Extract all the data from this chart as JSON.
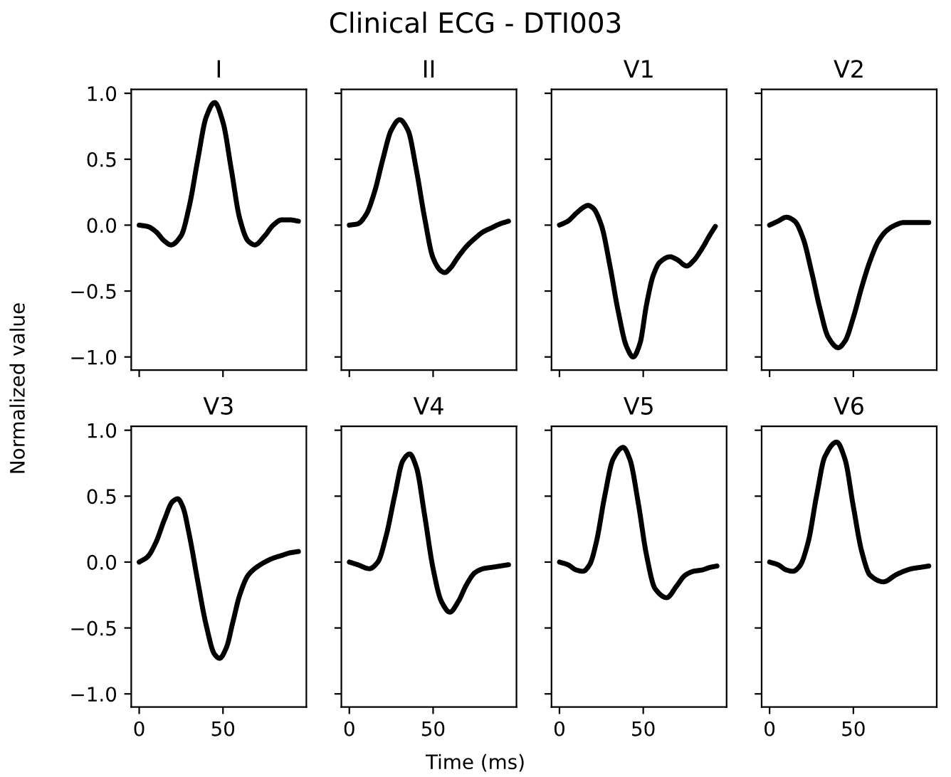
{
  "chart_data": [
    {
      "type": "other",
      "title": "Clinical ECG - DTI003",
      "xlabel": "Time (ms)",
      "ylabel": "Normalized value"
    },
    {
      "type": "line",
      "title": "I",
      "color": "#000000",
      "tick_labels": "y",
      "xlim": [
        -4.75,
        99.75
      ],
      "ylim": [
        -1.1,
        1.03
      ],
      "xticks": [
        0,
        50
      ],
      "yticks": [
        {
          "value": -1,
          "label": "−1.0"
        },
        {
          "value": -0.5,
          "label": "−0.5"
        },
        {
          "value": 0,
          "label": "0.0"
        },
        {
          "value": 0.5,
          "label": "0.5"
        },
        {
          "value": 1,
          "label": "1.0"
        }
      ],
      "x": [
        0,
        5,
        10,
        15,
        19,
        25,
        30,
        35,
        40,
        45,
        50,
        55,
        60,
        65,
        69,
        75,
        80,
        85,
        90,
        95
      ],
      "values": [
        0,
        -0.01,
        -0.05,
        -0.12,
        -0.15,
        -0.08,
        0.15,
        0.5,
        0.82,
        0.93,
        0.78,
        0.42,
        0.05,
        -0.12,
        -0.15,
        -0.08,
        0.0,
        0.04,
        0.04,
        0.03
      ]
    },
    {
      "type": "line",
      "title": "II",
      "color": "#000000",
      "tick_labels": false,
      "xlim": [
        -4.75,
        99.75
      ],
      "ylim": [
        -1.1,
        1.03
      ],
      "xticks": [
        0,
        50
      ],
      "yticks": [
        -1,
        -0.5,
        0,
        0.5,
        1
      ],
      "x": [
        0,
        5,
        10,
        15,
        20,
        25,
        30,
        35,
        40,
        45,
        50,
        55,
        57,
        60,
        65,
        70,
        75,
        80,
        85,
        90,
        95
      ],
      "values": [
        0,
        0.01,
        0.08,
        0.25,
        0.5,
        0.72,
        0.8,
        0.72,
        0.42,
        0.05,
        -0.25,
        -0.35,
        -0.36,
        -0.33,
        -0.24,
        -0.16,
        -0.1,
        -0.05,
        -0.02,
        0.01,
        0.03
      ]
    },
    {
      "type": "line",
      "title": "V1",
      "color": "#000000",
      "tick_labels": false,
      "xlim": [
        -4.75,
        99.75
      ],
      "ylim": [
        -1.1,
        1.03
      ],
      "xticks": [
        0,
        50
      ],
      "yticks": [
        -1,
        -0.5,
        0,
        0.5,
        1
      ],
      "x": [
        0,
        5,
        10,
        15,
        17,
        20,
        25,
        30,
        35,
        40,
        44,
        48,
        52,
        56,
        60,
        66,
        70,
        76,
        80,
        85,
        90,
        93
      ],
      "values": [
        0,
        0.03,
        0.09,
        0.14,
        0.15,
        0.13,
        0.0,
        -0.3,
        -0.65,
        -0.92,
        -1.0,
        -0.9,
        -0.6,
        -0.38,
        -0.28,
        -0.24,
        -0.26,
        -0.31,
        -0.27,
        -0.18,
        -0.07,
        -0.01
      ]
    },
    {
      "type": "line",
      "title": "V2",
      "color": "#000000",
      "tick_labels": false,
      "xlim": [
        -4.75,
        99.75
      ],
      "ylim": [
        -1.1,
        1.03
      ],
      "xticks": [
        0,
        50
      ],
      "yticks": [
        -1,
        -0.5,
        0,
        0.5,
        1
      ],
      "x": [
        0,
        5,
        10,
        15,
        20,
        25,
        30,
        35,
        41,
        45,
        50,
        55,
        60,
        65,
        70,
        75,
        80,
        85,
        90,
        95
      ],
      "values": [
        0,
        0.03,
        0.06,
        0.03,
        -0.1,
        -0.35,
        -0.63,
        -0.85,
        -0.93,
        -0.88,
        -0.7,
        -0.47,
        -0.27,
        -0.12,
        -0.04,
        0.0,
        0.02,
        0.02,
        0.02,
        0.02
      ]
    },
    {
      "type": "line",
      "title": "V3",
      "color": "#000000",
      "xlim": [
        -4.75,
        99.75
      ],
      "ylim": [
        -1.1,
        1.03
      ],
      "xticks": [
        0,
        50
      ],
      "yticks": [
        {
          "value": -1,
          "label": "−1.0"
        },
        {
          "value": -0.5,
          "label": "−0.5"
        },
        {
          "value": 0,
          "label": "0.0"
        },
        {
          "value": 0.5,
          "label": "0.5"
        },
        {
          "value": 1,
          "label": "1.0"
        }
      ],
      "x": [
        0,
        5,
        10,
        15,
        20,
        23,
        26,
        30,
        35,
        40,
        45,
        48,
        52,
        56,
        60,
        65,
        70,
        75,
        80,
        85,
        90,
        95
      ],
      "values": [
        0,
        0.04,
        0.15,
        0.32,
        0.46,
        0.48,
        0.42,
        0.2,
        -0.15,
        -0.48,
        -0.7,
        -0.73,
        -0.65,
        -0.45,
        -0.25,
        -0.1,
        -0.04,
        0.0,
        0.03,
        0.05,
        0.07,
        0.08
      ]
    },
    {
      "type": "line",
      "title": "V4",
      "color": "#000000",
      "tick_labels": "x",
      "xlim": [
        -4.75,
        99.75
      ],
      "ylim": [
        -1.1,
        1.03
      ],
      "xticks": [
        0,
        50
      ],
      "yticks": [
        -1,
        -0.5,
        0,
        0.5,
        1
      ],
      "x": [
        0,
        5,
        12,
        17,
        22,
        27,
        32,
        36,
        40,
        45,
        50,
        55,
        60,
        65,
        70,
        75,
        80,
        85,
        90,
        95
      ],
      "values": [
        0,
        -0.02,
        -0.05,
        0.0,
        0.2,
        0.5,
        0.77,
        0.82,
        0.72,
        0.35,
        -0.05,
        -0.3,
        -0.38,
        -0.3,
        -0.17,
        -0.08,
        -0.05,
        -0.04,
        -0.03,
        -0.02
      ]
    },
    {
      "type": "line",
      "title": "V5",
      "color": "#000000",
      "tick_labels": "x",
      "xlim": [
        -4.75,
        99.75
      ],
      "ylim": [
        -1.1,
        1.03
      ],
      "xticks": [
        0,
        50
      ],
      "yticks": [
        -1,
        -0.5,
        0,
        0.5,
        1
      ],
      "x": [
        0,
        5,
        10,
        14,
        18,
        22,
        27,
        32,
        38,
        42,
        47,
        52,
        57,
        64,
        70,
        75,
        80,
        85,
        90,
        94
      ],
      "values": [
        0,
        -0.02,
        -0.06,
        -0.07,
        -0.02,
        0.15,
        0.5,
        0.78,
        0.87,
        0.78,
        0.45,
        0.05,
        -0.2,
        -0.27,
        -0.18,
        -0.1,
        -0.07,
        -0.06,
        -0.04,
        -0.03
      ]
    },
    {
      "type": "line",
      "title": "V6",
      "color": "#000000",
      "tick_labels": "x",
      "xlim": [
        -4.75,
        99.75
      ],
      "ylim": [
        -1.1,
        1.03
      ],
      "xticks": [
        0,
        50
      ],
      "yticks": [
        -1,
        -0.5,
        0,
        0.5,
        1
      ],
      "x": [
        0,
        5,
        10,
        14,
        18,
        23,
        28,
        33,
        40,
        45,
        50,
        55,
        60,
        68,
        75,
        80,
        85,
        90,
        95
      ],
      "values": [
        0,
        -0.02,
        -0.06,
        -0.07,
        -0.03,
        0.15,
        0.5,
        0.8,
        0.91,
        0.78,
        0.42,
        0.08,
        -0.1,
        -0.15,
        -0.1,
        -0.07,
        -0.05,
        -0.04,
        -0.03
      ]
    }
  ]
}
